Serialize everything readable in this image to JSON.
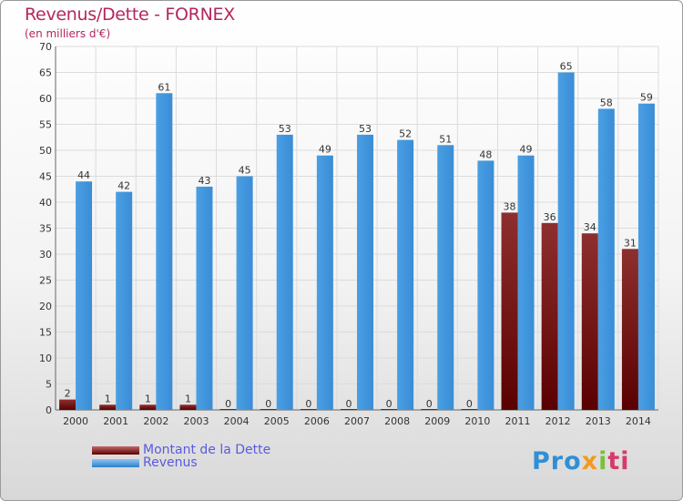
{
  "chart_data": {
    "type": "bar",
    "title": "Revenus/Dette - FORNEX",
    "subtitle": "(en milliers d'€)",
    "categories": [
      "2000",
      "2001",
      "2002",
      "2003",
      "2004",
      "2005",
      "2006",
      "2007",
      "2008",
      "2009",
      "2010",
      "2011",
      "2012",
      "2013",
      "2014"
    ],
    "series": [
      {
        "name": "Montant de la Dette",
        "color": "#8b1a1a",
        "values": [
          2,
          1,
          1,
          1,
          0,
          0,
          0,
          0,
          0,
          0,
          0,
          38,
          36,
          34,
          31
        ]
      },
      {
        "name": "Revenus",
        "color": "#3f95dd",
        "values": [
          44,
          42,
          61,
          43,
          45,
          53,
          49,
          53,
          52,
          51,
          48,
          49,
          65,
          58,
          59
        ]
      }
    ],
    "ylim": [
      0,
      70
    ],
    "yticks": [
      0,
      5,
      10,
      15,
      20,
      25,
      30,
      35,
      40,
      45,
      50,
      55,
      60,
      65,
      70
    ],
    "grid": true,
    "legend_position": "bottom-left"
  },
  "logo": {
    "p1": "Pro",
    "p2": "x",
    "p3": "i",
    "p4": "ti"
  }
}
